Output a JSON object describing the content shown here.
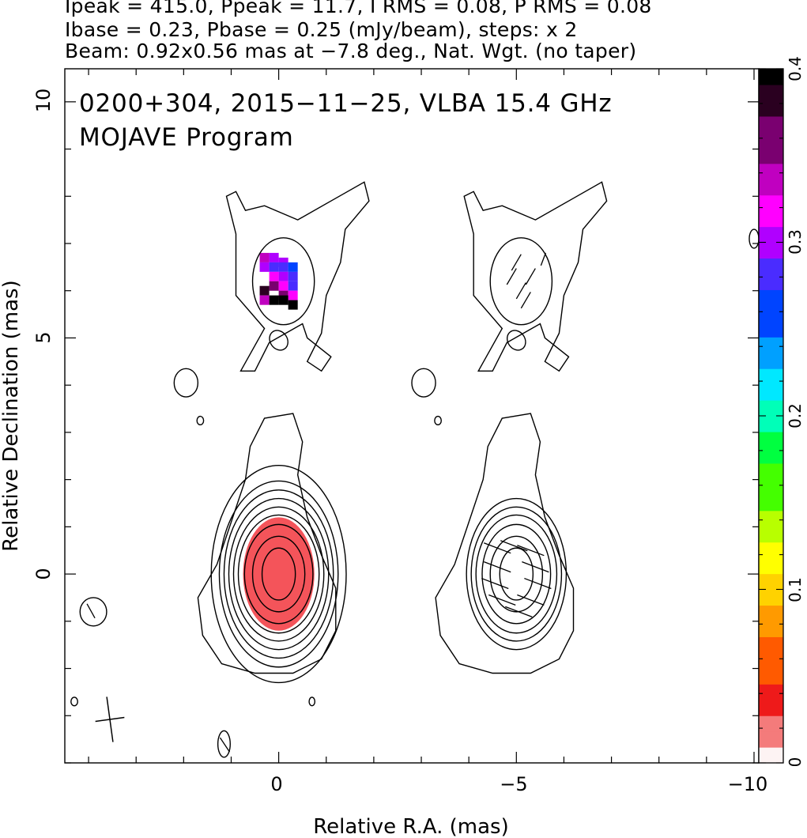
{
  "header": {
    "line1": "Ipeak = 415.0, Ppeak = 11.7, I RMS = 0.08, P RMS = 0.08",
    "line2": "Ibase = 0.23, Pbase = 0.25 (mJy/beam), steps: x 2",
    "line3": "Beam: 0.92x0.56 mas at −7.8 deg., Nat. Wgt. (no taper)"
  },
  "chart_data": {
    "type": "heatmap",
    "title": "0200+304, 2015−11−25, VLBA 15.4 GHz",
    "subtitle": "MOJAVE Program",
    "xlabel": "Relative R.A. (mas)",
    "ylabel": "Relative Declination (mas)",
    "xlim": [
      4.5,
      -10.1
    ],
    "ylim": [
      -4.0,
      10.7
    ],
    "x_ticks": [
      0,
      -5,
      -10
    ],
    "x_tick_labels": [
      "0",
      "−5",
      "−10"
    ],
    "y_ticks": [
      0,
      5,
      10
    ],
    "y_tick_labels": [
      "0",
      "5",
      "10"
    ],
    "colorbar": {
      "range": [
        0,
        0.4
      ],
      "ticks": [
        0,
        0.1,
        0.2,
        0.3,
        0.4
      ],
      "tick_labels": [
        "0",
        "0.1",
        "0.2",
        "0.3",
        "0.4"
      ],
      "colormap": [
        "#fdf3f3",
        "#f47b7b",
        "#ee1a1a",
        "#ff5a00",
        "#ff9a00",
        "#ffd200",
        "#ffff00",
        "#b8ff00",
        "#44ff00",
        "#00ff40",
        "#00ffb8",
        "#00e8ff",
        "#00a0ff",
        "#0044ff",
        "#4a2cff",
        "#b000ff",
        "#ff00ff",
        "#c000c0",
        "#7a0070",
        "#2a0020",
        "#000000"
      ]
    },
    "total_intensity_contours": {
      "component_core": {
        "center": [
          0.0,
          0.0
        ],
        "levels_semi_axes": [
          [
            0.35,
            0.55
          ],
          [
            0.55,
            0.8
          ],
          [
            0.72,
            1.05
          ],
          [
            0.85,
            1.25
          ],
          [
            0.95,
            1.42
          ],
          [
            1.05,
            1.6
          ],
          [
            1.15,
            1.78
          ],
          [
            1.25,
            1.97
          ],
          [
            1.42,
            2.3
          ]
        ]
      },
      "extended_envelope": [
        [
          1.2,
          -1.9
        ],
        [
          0.5,
          -2.1
        ],
        [
          -0.3,
          -2.1
        ],
        [
          -0.9,
          -1.8
        ],
        [
          -1.2,
          -1.2
        ],
        [
          -1.2,
          -0.3
        ],
        [
          -0.9,
          0.4
        ],
        [
          -0.6,
          1.2
        ],
        [
          -0.4,
          2.1
        ],
        [
          -0.5,
          2.8
        ],
        [
          -0.3,
          3.4
        ],
        [
          0.3,
          3.3
        ],
        [
          0.6,
          2.7
        ],
        [
          0.7,
          2.0
        ],
        [
          1.0,
          1.1
        ],
        [
          1.3,
          0.2
        ],
        [
          1.7,
          -0.5
        ],
        [
          1.6,
          -1.3
        ]
      ],
      "north_jet_outer": [
        [
          0.8,
          4.3
        ],
        [
          0.3,
          5.2
        ],
        [
          0.9,
          5.9
        ],
        [
          0.9,
          7.2
        ],
        [
          1.1,
          8.0
        ],
        [
          0.9,
          8.1
        ],
        [
          0.7,
          7.7
        ],
        [
          0.3,
          7.8
        ],
        [
          -0.4,
          7.5
        ],
        [
          -1.1,
          7.9
        ],
        [
          -1.8,
          8.3
        ],
        [
          -1.9,
          7.9
        ],
        [
          -1.4,
          7.3
        ],
        [
          -1.3,
          6.6
        ],
        [
          -1.0,
          5.9
        ],
        [
          -0.9,
          5.1
        ],
        [
          -0.6,
          4.5
        ],
        [
          -0.9,
          4.3
        ],
        [
          -1.1,
          4.6
        ],
        [
          -0.6,
          5.0
        ],
        [
          -0.5,
          5.3
        ],
        [
          0.2,
          4.9
        ],
        [
          0.5,
          4.3
        ]
      ],
      "north_jet_inner": {
        "center": [
          -0.1,
          6.2
        ],
        "semi_axes": [
          0.65,
          0.92
        ]
      },
      "north_jet_blob": {
        "center": [
          0.0,
          4.95
        ],
        "semi_axes": [
          0.18,
          0.22
        ]
      },
      "isolated": [
        {
          "center": [
            1.95,
            4.05
          ],
          "semi_axes": [
            0.25,
            0.3
          ]
        },
        {
          "center": [
            1.65,
            3.25
          ],
          "semi_axes": [
            0.07,
            0.09
          ]
        },
        {
          "center": [
            3.9,
            -0.8
          ],
          "semi_axes": [
            0.28,
            0.3
          ]
        },
        {
          "center": [
            4.3,
            -2.7
          ],
          "semi_axes": [
            0.07,
            0.09
          ]
        },
        {
          "center": [
            -0.7,
            -2.7
          ],
          "semi_axes": [
            0.06,
            0.09
          ]
        },
        {
          "center": [
            1.15,
            -3.6
          ],
          "semi_axes": [
            0.13,
            0.28
          ]
        },
        {
          "center": [
            -10.0,
            7.1
          ],
          "semi_axes": [
            0.1,
            0.2
          ]
        }
      ]
    },
    "polarization_pixels": [
      {
        "x": 0.3,
        "y": 6.7,
        "value": 0.33
      },
      {
        "x": 0.1,
        "y": 6.7,
        "value": 0.31
      },
      {
        "x": -0.1,
        "y": 6.6,
        "value": 0.3
      },
      {
        "x": 0.3,
        "y": 6.5,
        "value": 0.3
      },
      {
        "x": 0.1,
        "y": 6.5,
        "value": 0.29
      },
      {
        "x": -0.1,
        "y": 6.5,
        "value": 0.27
      },
      {
        "x": -0.3,
        "y": 6.5,
        "value": 0.26
      },
      {
        "x": 0.1,
        "y": 6.3,
        "value": 0.32
      },
      {
        "x": -0.1,
        "y": 6.3,
        "value": 0.3
      },
      {
        "x": -0.3,
        "y": 6.3,
        "value": 0.27
      },
      {
        "x": 0.1,
        "y": 6.1,
        "value": 0.36
      },
      {
        "x": -0.1,
        "y": 6.1,
        "value": 0.32
      },
      {
        "x": -0.3,
        "y": 6.1,
        "value": 0.28
      },
      {
        "x": 0.3,
        "y": 6.0,
        "value": 0.38
      },
      {
        "x": -0.1,
        "y": 5.9,
        "value": 0.36
      },
      {
        "x": -0.3,
        "y": 5.9,
        "value": 0.32
      },
      {
        "x": 0.1,
        "y": 5.8,
        "value": 0.4
      },
      {
        "x": -0.1,
        "y": 5.8,
        "value": 0.4
      },
      {
        "x": -0.3,
        "y": 5.7,
        "value": 0.4
      },
      {
        "x": 0.3,
        "y": 5.8,
        "value": 0.34
      }
    ],
    "fractional_polarization_core": {
      "center": [
        0.0,
        0.0
      ],
      "semi_axes": [
        0.75,
        1.2
      ],
      "value": 0.03
    },
    "evpa_ticks_north": [
      [
        -4.9,
        6.3
      ],
      [
        -5.1,
        6.0
      ],
      [
        -5.3,
        6.3
      ],
      [
        -5.0,
        6.6
      ],
      [
        -5.2,
        5.8
      ]
    ],
    "evpa_ticks_core": [
      [
        -4.6,
        0.55
      ],
      [
        -4.95,
        0.6
      ],
      [
        -5.3,
        0.5
      ],
      [
        -4.6,
        0.15
      ],
      [
        -5.4,
        0.15
      ],
      [
        -4.55,
        -0.2
      ],
      [
        -5.45,
        -0.2
      ],
      [
        -4.7,
        -0.55
      ],
      [
        -5.3,
        -0.55
      ],
      [
        -5.05,
        -0.8
      ]
    ],
    "beam": {
      "major_mas": 0.92,
      "minor_mas": 0.56,
      "pa_deg": -7.8
    }
  }
}
